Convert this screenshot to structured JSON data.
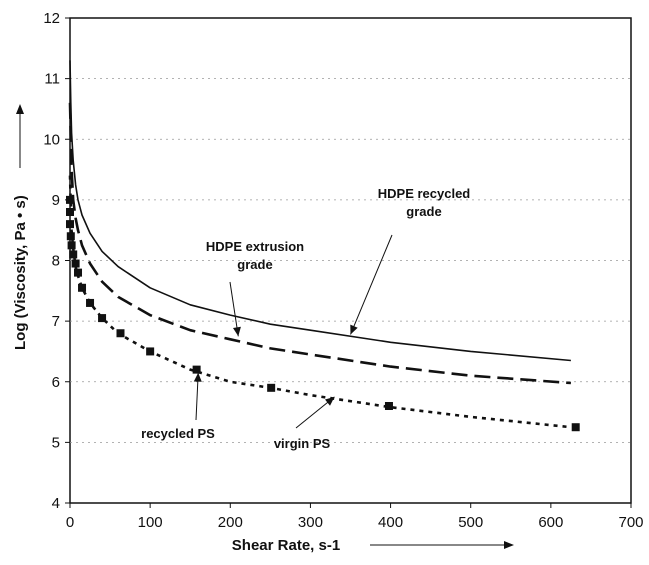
{
  "chart_data": {
    "type": "line",
    "title": "",
    "xlabel": "Shear Rate, s-1",
    "ylabel": "Log (Viscosity, Pa • s)",
    "xlim": [
      0,
      700
    ],
    "ylim": [
      4,
      12
    ],
    "x_ticks": [
      "0",
      "100",
      "200",
      "300",
      "400",
      "500",
      "600",
      "700"
    ],
    "y_ticks": [
      "4",
      "5",
      "6",
      "7",
      "8",
      "9",
      "10",
      "11",
      "12"
    ],
    "grid": "horizontal dotted",
    "legend": "none",
    "series": [
      {
        "name": "HDPE recycled grade",
        "style": "solid",
        "color": "#111111",
        "x": [
          0,
          1,
          2,
          4,
          7,
          10,
          15,
          25,
          40,
          60,
          100,
          150,
          200,
          250,
          300,
          400,
          500,
          625
        ],
        "y": [
          11.3,
          10.6,
          10.1,
          9.65,
          9.25,
          9.0,
          8.75,
          8.45,
          8.15,
          7.9,
          7.55,
          7.27,
          7.1,
          6.95,
          6.85,
          6.65,
          6.5,
          6.35
        ]
      },
      {
        "name": "HDPE extrusion grade",
        "style": "dashed",
        "color": "#111111",
        "x": [
          0,
          1,
          2,
          4,
          7,
          10,
          15,
          25,
          40,
          60,
          100,
          150,
          200,
          250,
          300,
          400,
          500,
          625
        ],
        "y": [
          10.6,
          10.0,
          9.5,
          9.0,
          8.7,
          8.5,
          8.25,
          7.95,
          7.65,
          7.4,
          7.1,
          6.85,
          6.7,
          6.55,
          6.45,
          6.25,
          6.1,
          5.98
        ]
      },
      {
        "name": "virgin PS",
        "style": "dotted",
        "color": "#111111",
        "x": [
          0,
          1,
          2,
          4,
          7,
          10,
          15,
          25,
          40,
          60,
          100,
          150,
          200,
          250,
          300,
          400,
          500,
          625
        ],
        "y": [
          9.4,
          8.9,
          8.5,
          8.2,
          7.9,
          7.75,
          7.55,
          7.3,
          7.05,
          6.8,
          6.5,
          6.2,
          6.0,
          5.9,
          5.78,
          5.58,
          5.42,
          5.25
        ]
      },
      {
        "name": "recycled PS",
        "style": "markers",
        "color": "#111111",
        "x": [
          0,
          0,
          0,
          1,
          2,
          4,
          7,
          10,
          15,
          25,
          40,
          63,
          100,
          158,
          251,
          398,
          631
        ],
        "y": [
          9.0,
          8.8,
          8.6,
          8.4,
          8.25,
          8.1,
          7.95,
          7.8,
          7.55,
          7.3,
          7.05,
          6.8,
          6.5,
          6.2,
          5.9,
          5.6,
          5.25
        ]
      }
    ],
    "annotations": [
      {
        "text": [
          "HDPE recycled",
          "grade"
        ],
        "target": {
          "x": 350,
          "y": 6.78
        }
      },
      {
        "text": [
          "HDPE extrusion",
          "grade"
        ],
        "target": {
          "x": 210,
          "y": 6.75
        }
      },
      {
        "text": [
          "recycled PS"
        ],
        "target": {
          "x": 160,
          "y": 6.15
        }
      },
      {
        "text": [
          "virgin PS"
        ],
        "target": {
          "x": 330,
          "y": 5.75
        }
      }
    ]
  }
}
